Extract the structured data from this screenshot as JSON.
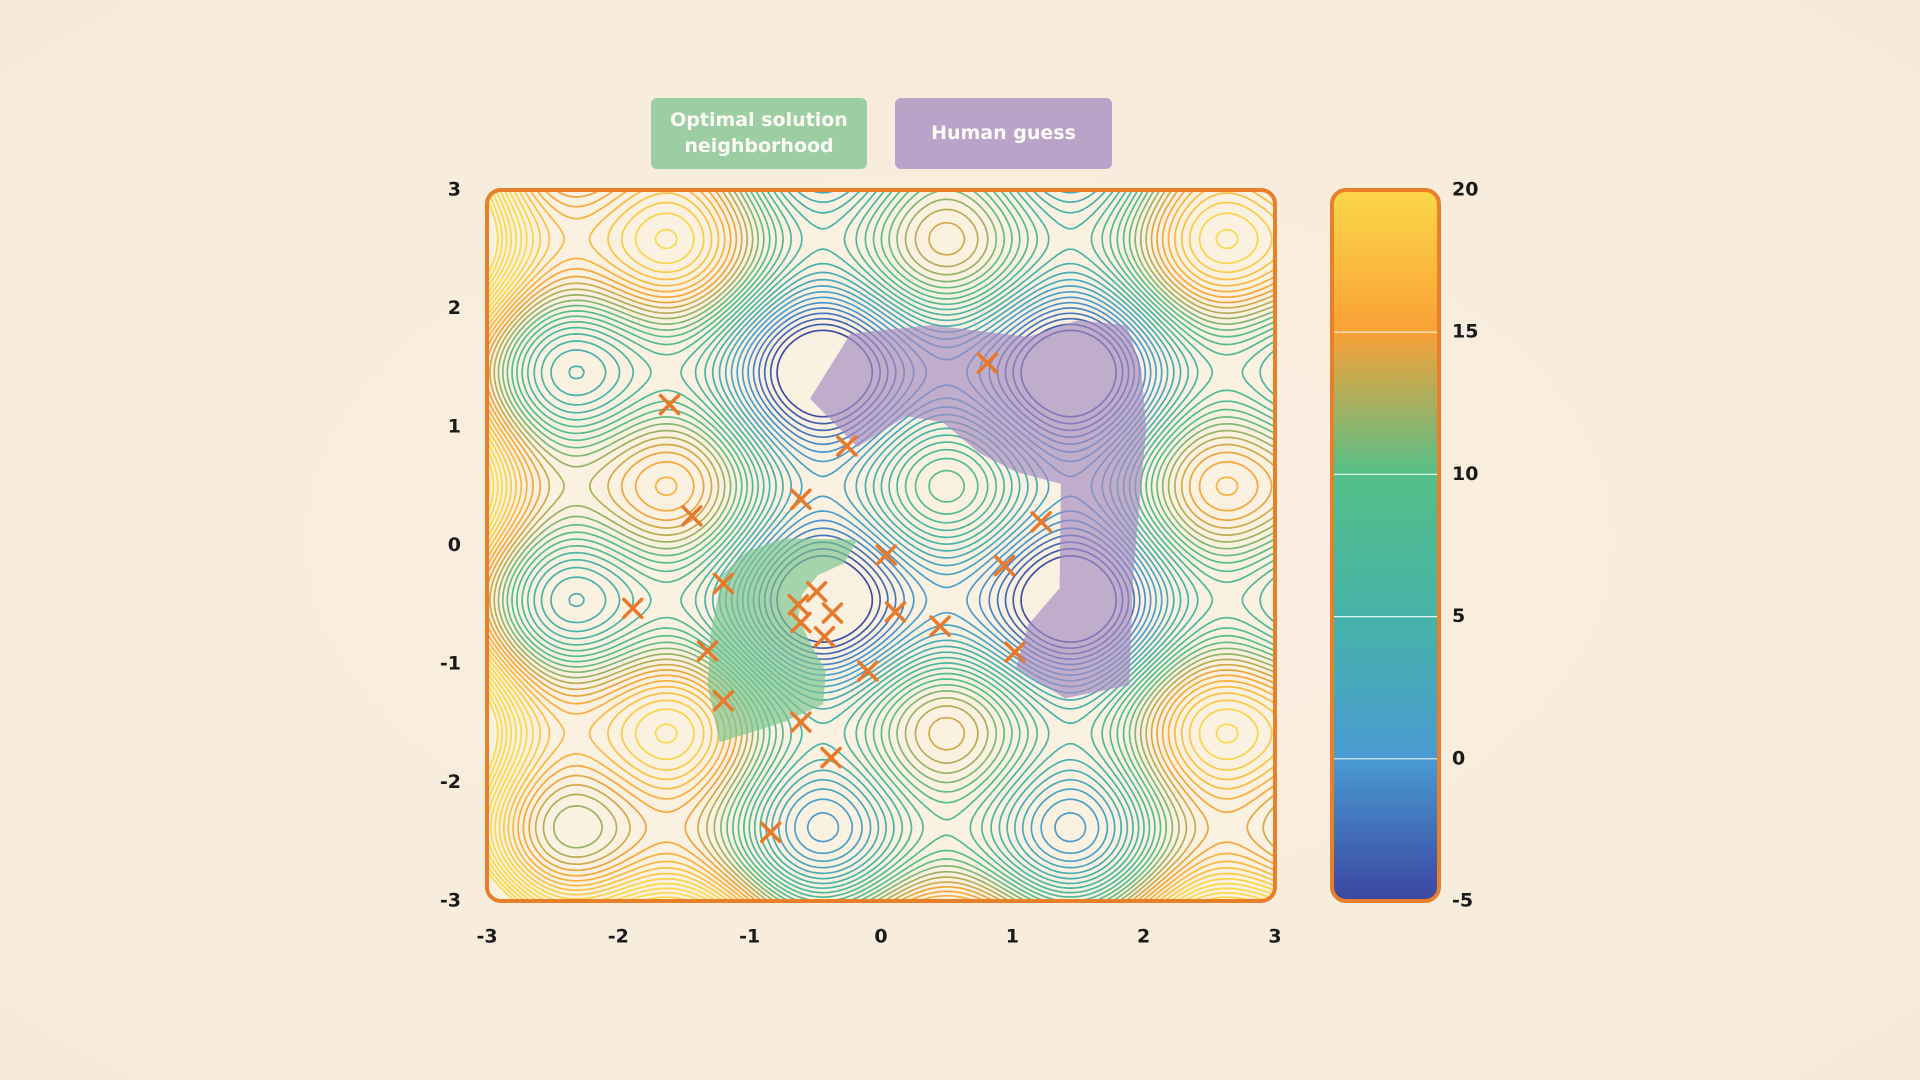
{
  "chart_data": {
    "type": "contour",
    "xlim": [
      -3,
      3
    ],
    "xticks": [
      -3,
      -2,
      -1,
      0,
      1,
      2,
      3
    ],
    "ylim": [
      -3,
      3
    ],
    "yticks": [
      -3,
      -2,
      -1,
      0,
      1,
      2,
      3
    ],
    "clim": [
      -5,
      20
    ],
    "cticks": [
      -5,
      0,
      5,
      10,
      15,
      20
    ],
    "colormap": [
      "#3b46a0",
      "#4a9ad2",
      "#46b3a8",
      "#55bf88",
      "#f9a136",
      "#fbd848"
    ],
    "frame_color": "#e8802a",
    "regions": [
      {
        "name": "Optimal solution neighborhood",
        "color": "#7cc690",
        "x": [
          -1.3,
          -1.21,
          -1.02,
          -0.74,
          -0.18,
          -0.28,
          -0.48,
          -0.6,
          -0.63,
          -0.54,
          -0.42,
          -0.44,
          -0.74,
          -1.23,
          -1.32
        ],
        "y": [
          -0.77,
          -0.25,
          -0.05,
          0.06,
          0.05,
          -0.15,
          -0.25,
          -0.41,
          -0.61,
          -0.82,
          -1.06,
          -1.34,
          -1.49,
          -1.66,
          -1.18
        ]
      },
      {
        "name": "Human guess",
        "color": "#a48bc1",
        "x": [
          -0.54,
          -0.23,
          0.38,
          1.12,
          1.5,
          1.87,
          1.98,
          2.02,
          1.96,
          1.92,
          1.89,
          1.4,
          1.03,
          1.12,
          1.36,
          1.37,
          1.03,
          0.75,
          0.47,
          0.19,
          -0.18
        ],
        "y": [
          1.24,
          1.79,
          1.86,
          1.76,
          1.9,
          1.86,
          1.5,
          0.99,
          0.26,
          -0.25,
          -1.18,
          -1.29,
          -1.03,
          -0.67,
          -0.36,
          0.52,
          0.62,
          0.78,
          1.04,
          1.09,
          0.83
        ]
      }
    ],
    "points": {
      "color": "#e8782a",
      "x": [
        -1.61,
        0.81,
        -0.26,
        -0.61,
        -1.44,
        1.22,
        0.04,
        0.94,
        -1.2,
        -0.49,
        -1.89,
        -0.63,
        -0.37,
        -0.61,
        0.11,
        0.45,
        -0.43,
        -1.32,
        1.02,
        -0.1,
        -1.2,
        -0.61,
        -0.38,
        -0.84
      ],
      "y": [
        1.19,
        1.54,
        0.84,
        0.39,
        0.25,
        0.2,
        -0.08,
        -0.17,
        -0.32,
        -0.39,
        -0.53,
        -0.5,
        -0.57,
        -0.65,
        -0.56,
        -0.68,
        -0.77,
        -0.89,
        -0.9,
        -1.06,
        -1.31,
        -1.49,
        -1.79,
        -2.42
      ]
    }
  }
}
